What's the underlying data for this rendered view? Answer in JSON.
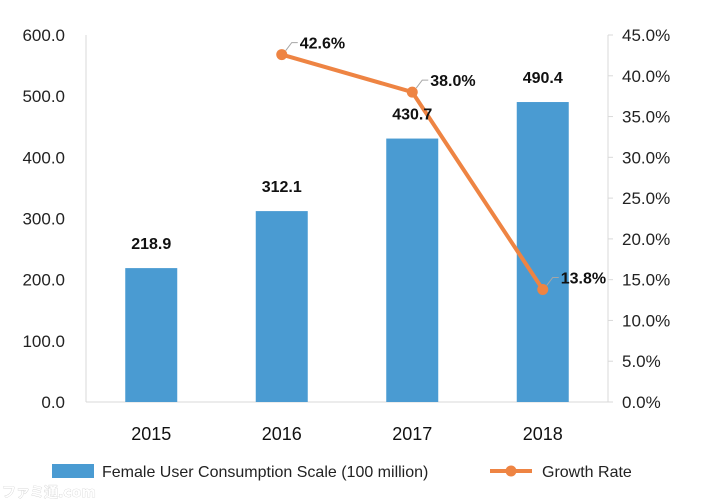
{
  "chart_data": {
    "type": "bar",
    "categories": [
      "2015",
      "2016",
      "2017",
      "2018"
    ],
    "series": [
      {
        "name": "Female User Consumption Scale (100 million)",
        "kind": "bar",
        "axis": "left",
        "color": "#4a9bd2",
        "values": [
          218.9,
          312.1,
          430.7,
          490.4
        ],
        "labels": [
          "218.9",
          "312.1",
          "430.7",
          "490.4"
        ]
      },
      {
        "name": "Growth Rate",
        "kind": "line",
        "axis": "right",
        "color": "#ee8443",
        "x": [
          "2016",
          "2017",
          "2018"
        ],
        "values": [
          42.6,
          38.0,
          13.8
        ],
        "labels": [
          "42.6%",
          "38.0%",
          "13.8%"
        ]
      }
    ],
    "left_axis": {
      "ylim": [
        0,
        600
      ],
      "ticks": [
        "0.0",
        "100.0",
        "200.0",
        "300.0",
        "400.0",
        "500.0",
        "600.0"
      ]
    },
    "right_axis": {
      "ylim": [
        0,
        45
      ],
      "ticks": [
        "0.0%",
        "5.0%",
        "10.0%",
        "15.0%",
        "20.0%",
        "25.0%",
        "30.0%",
        "35.0%",
        "40.0%",
        "45.0%"
      ]
    },
    "grid": false,
    "legend_position": "bottom",
    "title": "",
    "xlabel": "",
    "ylabel": ""
  },
  "watermark": "ファミ通.com"
}
